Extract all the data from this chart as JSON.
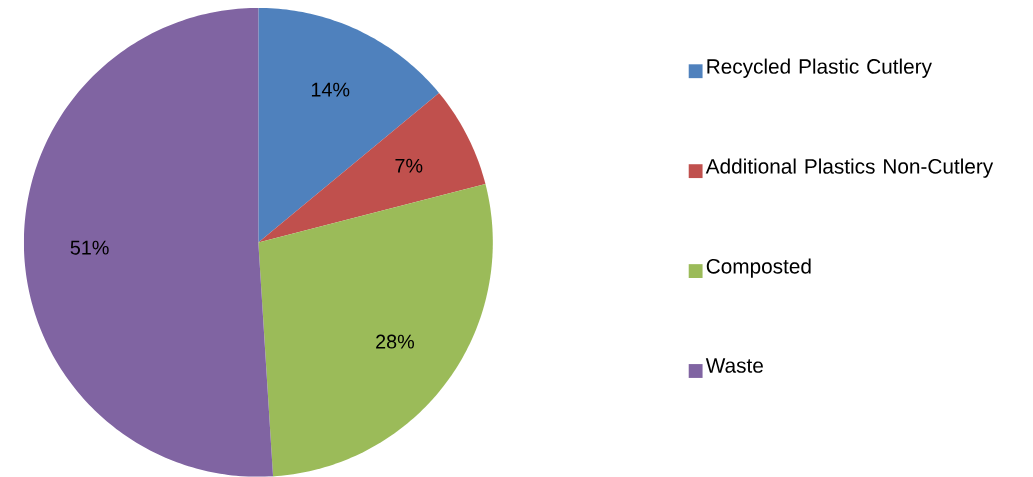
{
  "chart_data": {
    "type": "pie",
    "categories": [
      "Recycled Plastic Cutlery",
      "Additional Plastics Non-Cutlery",
      "Composted",
      "Waste"
    ],
    "values": [
      14,
      7,
      28,
      51
    ],
    "colors": [
      "#4f81bd",
      "#c0504d",
      "#9bbb59",
      "#8064a2"
    ],
    "value_labels": [
      "14%",
      "7%",
      "28%",
      "51%"
    ],
    "legend": "right"
  }
}
